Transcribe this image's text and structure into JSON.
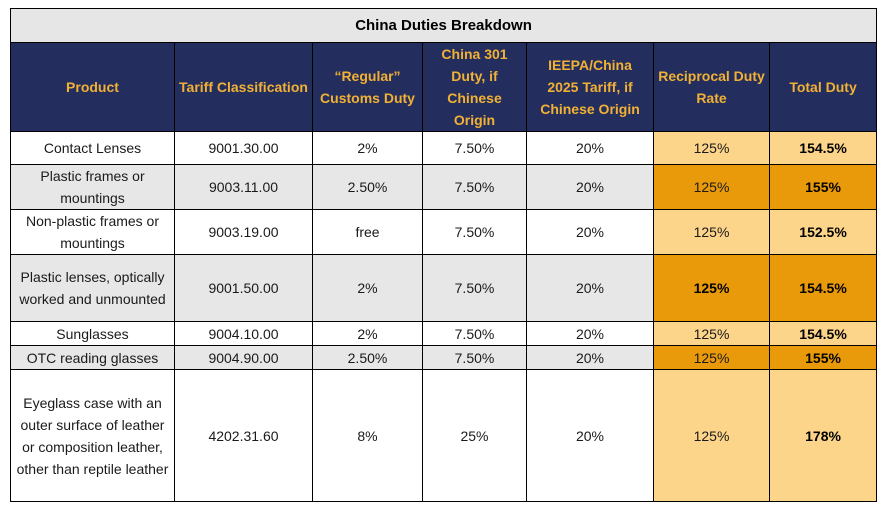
{
  "title": "China Duties Breakdown",
  "colors": {
    "header_bg": "#232e5e",
    "header_text": "#f2b134",
    "title_bg": "#e6e6e6",
    "row_alt_bg": "#e7e7e7",
    "highlight_light": "#fdd58a",
    "highlight_dark": "#e99a0a"
  },
  "headers": [
    "Product",
    "Tariff Classification",
    "“Regular” Customs Duty",
    "China 301 Duty, if Chinese Origin",
    "IEEPA/China 2025 Tariff, if Chinese Origin",
    "Reciprocal Duty Rate",
    "Total Duty"
  ],
  "rows": [
    {
      "product": "Contact Lenses",
      "tariff": "9001.30.00",
      "regular": "2%",
      "china301": "7.50%",
      "ieepa": "20%",
      "reciprocal": "125%",
      "total": "154.5%"
    },
    {
      "product": "Plastic frames or mountings",
      "tariff": "9003.11.00",
      "regular": "2.50%",
      "china301": "7.50%",
      "ieepa": "20%",
      "reciprocal": "125%",
      "total": "155%"
    },
    {
      "product": "Non-plastic frames or mountings",
      "tariff": "9003.19.00",
      "regular": "free",
      "china301": "7.50%",
      "ieepa": "20%",
      "reciprocal": "125%",
      "total": "152.5%"
    },
    {
      "product": "Plastic lenses, optically worked and unmounted",
      "tariff": "9001.50.00",
      "regular": "2%",
      "china301": "7.50%",
      "ieepa": "20%",
      "reciprocal": "125%",
      "total": "154.5%"
    },
    {
      "product": "Sunglasses",
      "tariff": "9004.10.00",
      "regular": "2%",
      "china301": "7.50%",
      "ieepa": "20%",
      "reciprocal": "125%",
      "total": "154.5%"
    },
    {
      "product": "OTC reading glasses",
      "tariff": "9004.90.00",
      "regular": "2.50%",
      "china301": "7.50%",
      "ieepa": "20%",
      "reciprocal": "125%",
      "total": "155%"
    },
    {
      "product": "Eyeglass case with an outer surface of leather or composition leather, other than reptile leather",
      "tariff": "4202.31.60",
      "regular": "8%",
      "china301": "25%",
      "ieepa": "20%",
      "reciprocal": "125%",
      "total": "178%"
    }
  ]
}
